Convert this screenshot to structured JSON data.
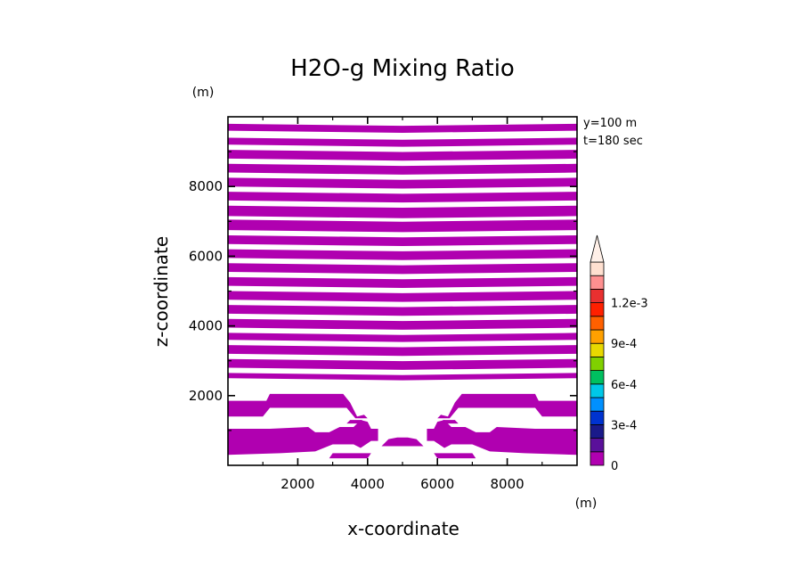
{
  "chart_data": {
    "type": "contour",
    "title": "H2O-g Mixing Ratio",
    "xlabel": "x-coordinate",
    "ylabel": "z-coordinate",
    "x_unit_label": "(m)",
    "y_unit_label": "(m)",
    "info_lines": [
      "y=100 m",
      "t=180 sec"
    ],
    "xlim": [
      0,
      10000
    ],
    "ylim": [
      0,
      10000
    ],
    "xticks": [
      2000,
      4000,
      6000,
      8000
    ],
    "yticks": [
      2000,
      4000,
      6000,
      8000
    ],
    "xtick_labels": [
      "2000",
      "4000",
      "6000",
      "8000"
    ],
    "ytick_labels": [
      "2000",
      "4000",
      "6000",
      "8000"
    ],
    "fill_color": "#b000b0",
    "upper_bands_z": [
      [
        9600,
        9800
      ],
      [
        9200,
        9400
      ],
      [
        8800,
        9050
      ],
      [
        8400,
        8650
      ],
      [
        8000,
        8250
      ],
      [
        7600,
        7850
      ],
      [
        7150,
        7450
      ],
      [
        6750,
        7050
      ],
      [
        6350,
        6600
      ],
      [
        5950,
        6200
      ],
      [
        5550,
        5800
      ],
      [
        5150,
        5400
      ],
      [
        4750,
        5000
      ],
      [
        4350,
        4600
      ],
      [
        3950,
        4200
      ],
      [
        3600,
        3800
      ],
      [
        3200,
        3450
      ],
      [
        2800,
        3050
      ],
      [
        2500,
        2650
      ]
    ],
    "colorbar": {
      "colors": [
        "#b000b0",
        "#5a109a",
        "#1a1a8a",
        "#0033d0",
        "#0090ff",
        "#00c8e8",
        "#00c060",
        "#80d000",
        "#e8d800",
        "#ffa000",
        "#ff6000",
        "#ff2000",
        "#e83030",
        "#ff9090",
        "#ffe0d0"
      ],
      "tick_labels": [
        "0",
        "3e-4",
        "6e-4",
        "9e-4",
        "1.2e-3"
      ],
      "tick_values": [
        0,
        0.0003,
        0.0006,
        0.0009,
        0.0012
      ]
    }
  }
}
